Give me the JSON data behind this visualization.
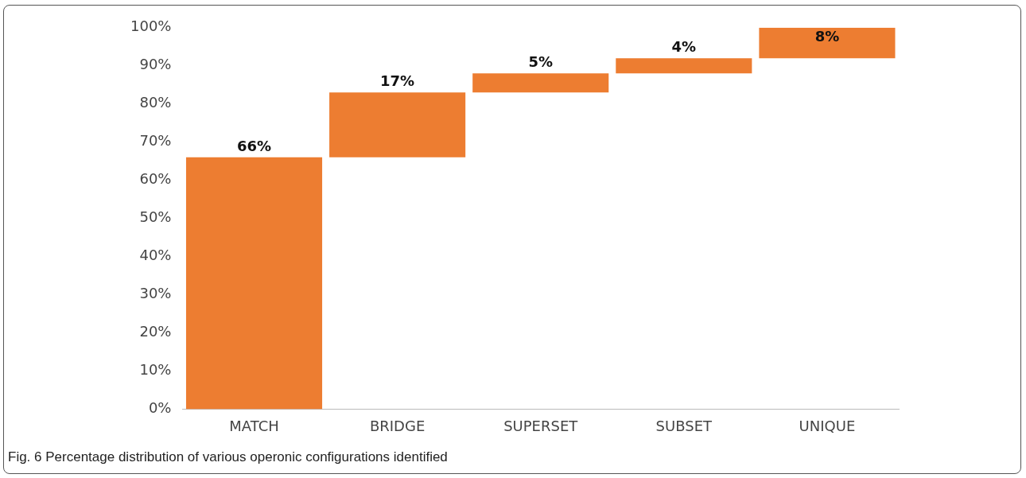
{
  "chart_data": {
    "type": "bar",
    "categories": [
      "MATCH",
      "BRIDGE",
      "SUPERSET",
      "SUBSET",
      "UNIQUE"
    ],
    "values": [
      66,
      17,
      5,
      4,
      8
    ],
    "base": [
      0,
      66,
      83,
      88,
      92
    ],
    "color": "#ed7d31",
    "value_labels": [
      "66%",
      "17%",
      "5%",
      "4%",
      "8%"
    ],
    "ylim": [
      0,
      100
    ],
    "yticks": [
      {
        "value": 0,
        "label": "0%"
      },
      {
        "value": 10,
        "label": "10%"
      },
      {
        "value": 20,
        "label": "20%"
      },
      {
        "value": 30,
        "label": "30%"
      },
      {
        "value": 40,
        "label": "40%"
      },
      {
        "value": 50,
        "label": "50%"
      },
      {
        "value": 60,
        "label": "60%"
      },
      {
        "value": 70,
        "label": "70%"
      },
      {
        "value": 80,
        "label": "80%"
      },
      {
        "value": 90,
        "label": "90%"
      },
      {
        "value": 100,
        "label": "100%"
      }
    ],
    "grid": false,
    "legend": false,
    "annotations": [
      "Fig. 6 Percentage distribution of various operonic configurations identified"
    ]
  }
}
